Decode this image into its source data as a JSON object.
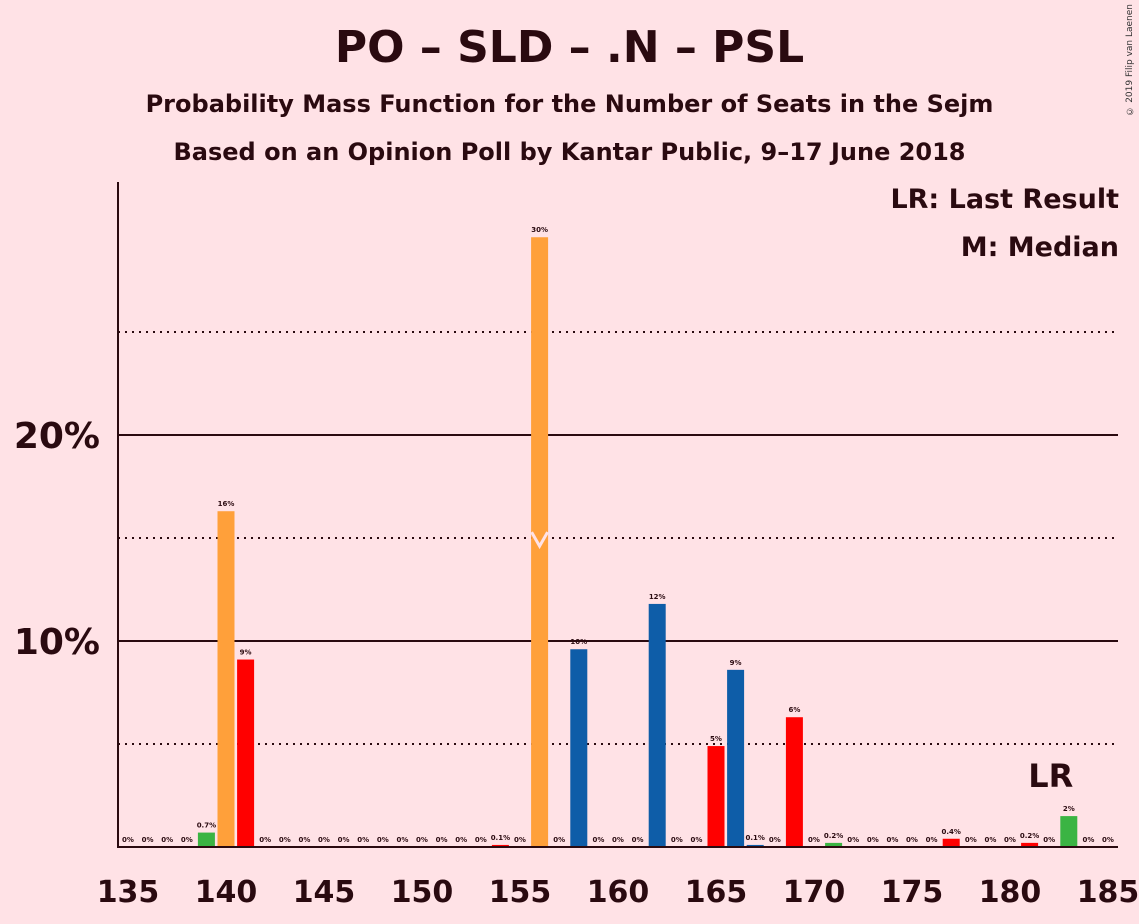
{
  "title": "PO – SLD – .N – PSL",
  "subtitle1": "Probability Mass Function for the Number of Seats in the Sejm",
  "subtitle2": "Based on an Opinion Poll by Kantar Public, 9–17 June 2018",
  "copyright": "© 2019 Filip van Laenen",
  "legend": {
    "lr": "LR: Last Result",
    "median": "M: Median"
  },
  "colors": {
    "background": "#FFE2E6",
    "orange": "#FFA03A",
    "red": "#FF0000",
    "blue": "#0E5DA8",
    "green": "#3BB443"
  },
  "chart_data": {
    "type": "bar",
    "xlabel": "",
    "ylabel": "",
    "xlim": [
      135,
      185
    ],
    "xticks": [
      "135",
      "140",
      "145",
      "150",
      "155",
      "160",
      "165",
      "170",
      "175",
      "180",
      "185"
    ],
    "yticks": [
      "10%",
      "20%"
    ],
    "ylim": [
      0,
      32
    ],
    "grid": {
      "solid": [
        10,
        20
      ],
      "dotted": [
        5,
        15,
        25
      ]
    },
    "median_seat": 156,
    "last_result_seat": 183,
    "last_result_label": "LR",
    "bars": [
      {
        "seat": 135,
        "value": 0,
        "label": "0%",
        "color": "green"
      },
      {
        "seat": 136,
        "value": 0,
        "label": "0%",
        "color": "green"
      },
      {
        "seat": 137,
        "value": 0,
        "label": "0%",
        "color": "green"
      },
      {
        "seat": 138,
        "value": 0,
        "label": "0%",
        "color": "green"
      },
      {
        "seat": 139,
        "value": 0.7,
        "label": "0.7%",
        "color": "green"
      },
      {
        "seat": 140,
        "value": 16.3,
        "label": "16%",
        "color": "orange"
      },
      {
        "seat": 141,
        "value": 9.1,
        "label": "9%",
        "color": "red"
      },
      {
        "seat": 142,
        "value": 0,
        "label": "0%",
        "color": "red"
      },
      {
        "seat": 143,
        "value": 0,
        "label": "0%",
        "color": "red"
      },
      {
        "seat": 144,
        "value": 0,
        "label": "0%",
        "color": "red"
      },
      {
        "seat": 145,
        "value": 0,
        "label": "0%",
        "color": "red"
      },
      {
        "seat": 146,
        "value": 0,
        "label": "0%",
        "color": "red"
      },
      {
        "seat": 147,
        "value": 0,
        "label": "0%",
        "color": "red"
      },
      {
        "seat": 148,
        "value": 0,
        "label": "0%",
        "color": "red"
      },
      {
        "seat": 149,
        "value": 0,
        "label": "0%",
        "color": "red"
      },
      {
        "seat": 150,
        "value": 0,
        "label": "0%",
        "color": "red"
      },
      {
        "seat": 151,
        "value": 0,
        "label": "0%",
        "color": "red"
      },
      {
        "seat": 152,
        "value": 0,
        "label": "0%",
        "color": "red"
      },
      {
        "seat": 153,
        "value": 0,
        "label": "0%",
        "color": "red"
      },
      {
        "seat": 154,
        "value": 0.1,
        "label": "0.1%",
        "color": "red"
      },
      {
        "seat": 155,
        "value": 0,
        "label": "0%",
        "color": "red"
      },
      {
        "seat": 156,
        "value": 29.6,
        "label": "30%",
        "color": "orange"
      },
      {
        "seat": 157,
        "value": 0,
        "label": "0%",
        "color": "blue"
      },
      {
        "seat": 158,
        "value": 9.6,
        "label": "10%",
        "color": "blue"
      },
      {
        "seat": 159,
        "value": 0,
        "label": "0%",
        "color": "blue"
      },
      {
        "seat": 160,
        "value": 0,
        "label": "0%",
        "color": "blue"
      },
      {
        "seat": 161,
        "value": 0,
        "label": "0%",
        "color": "blue"
      },
      {
        "seat": 162,
        "value": 11.8,
        "label": "12%",
        "color": "blue"
      },
      {
        "seat": 163,
        "value": 0,
        "label": "0%",
        "color": "blue"
      },
      {
        "seat": 164,
        "value": 0,
        "label": "0%",
        "color": "blue"
      },
      {
        "seat": 165,
        "value": 4.9,
        "label": "5%",
        "color": "red"
      },
      {
        "seat": 166,
        "value": 8.6,
        "label": "9%",
        "color": "blue"
      },
      {
        "seat": 167,
        "value": 0.1,
        "label": "0.1%",
        "color": "blue"
      },
      {
        "seat": 168,
        "value": 0,
        "label": "0%",
        "color": "blue"
      },
      {
        "seat": 169,
        "value": 6.3,
        "label": "6%",
        "color": "red"
      },
      {
        "seat": 170,
        "value": 0,
        "label": "0%",
        "color": "green"
      },
      {
        "seat": 171,
        "value": 0.2,
        "label": "0.2%",
        "color": "green"
      },
      {
        "seat": 172,
        "value": 0,
        "label": "0%",
        "color": "green"
      },
      {
        "seat": 173,
        "value": 0,
        "label": "0%",
        "color": "green"
      },
      {
        "seat": 174,
        "value": 0,
        "label": "0%",
        "color": "green"
      },
      {
        "seat": 175,
        "value": 0,
        "label": "0%",
        "color": "green"
      },
      {
        "seat": 176,
        "value": 0,
        "label": "0%",
        "color": "green"
      },
      {
        "seat": 177,
        "value": 0.4,
        "label": "0.4%",
        "color": "red"
      },
      {
        "seat": 178,
        "value": 0,
        "label": "0%",
        "color": "red"
      },
      {
        "seat": 179,
        "value": 0,
        "label": "0%",
        "color": "red"
      },
      {
        "seat": 180,
        "value": 0,
        "label": "0%",
        "color": "red"
      },
      {
        "seat": 181,
        "value": 0.2,
        "label": "0.2%",
        "color": "red"
      },
      {
        "seat": 182,
        "value": 0,
        "label": "0%",
        "color": "red"
      },
      {
        "seat": 183,
        "value": 1.5,
        "label": "2%",
        "color": "green"
      },
      {
        "seat": 184,
        "value": 0,
        "label": "0%",
        "color": "green"
      },
      {
        "seat": 185,
        "value": 0,
        "label": "0%",
        "color": "green"
      }
    ]
  }
}
